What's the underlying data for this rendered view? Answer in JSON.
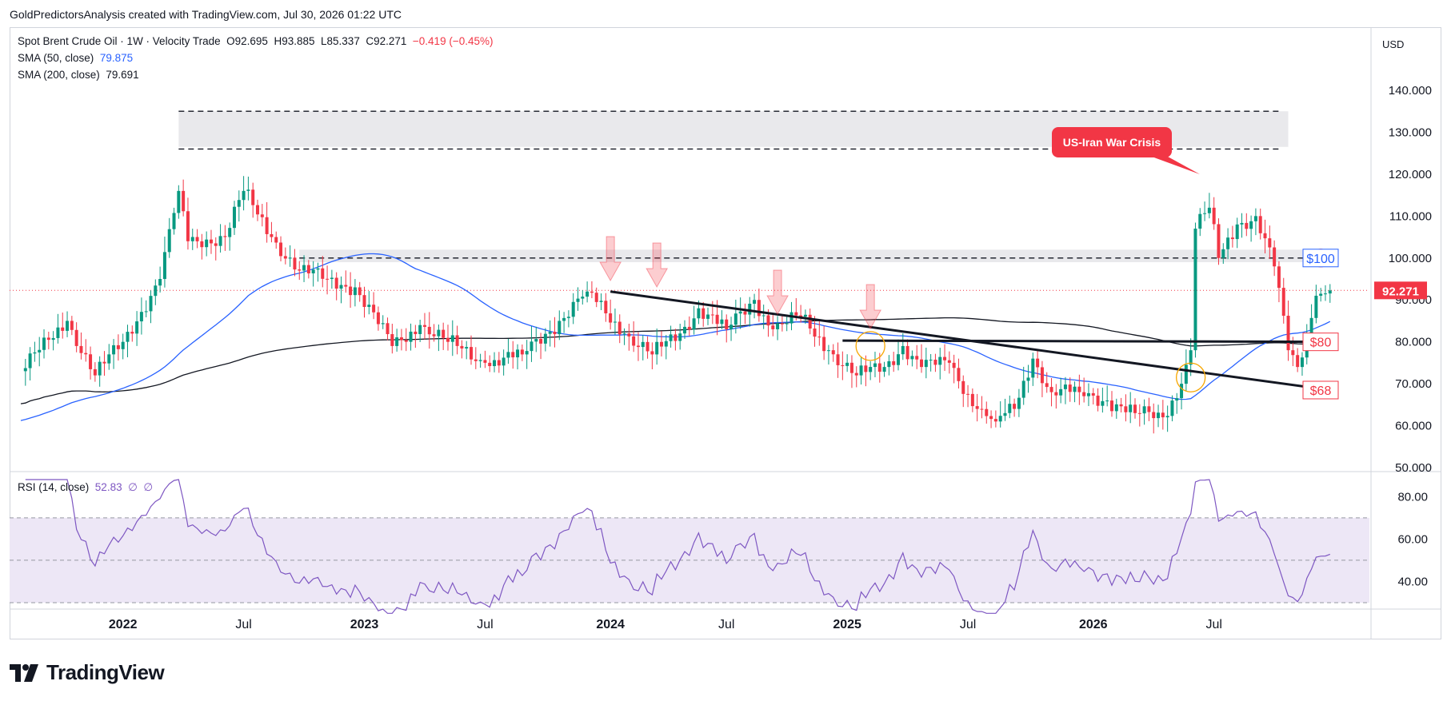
{
  "header": {
    "attribution": "GoldPredictorsAnalysis created with TradingView.com, Jul 30, 2026 01:22 UTC"
  },
  "legend": {
    "symbol": "Spot Brent Crude Oil · 1W · Velocity Trade",
    "open_label": "O",
    "open": "92.695",
    "high_label": "H",
    "high": "93.885",
    "low_label": "L",
    "low": "85.337",
    "close_label": "C",
    "close": "92.271",
    "change": "−0.419 (−0.45%)",
    "sma50_label": "SMA (50, close)",
    "sma50_value": "79.875",
    "sma200_label": "SMA (200, close)",
    "sma200_value": "79.691",
    "rsi_label": "RSI (14, close)",
    "rsi_value": "52.83",
    "rsi_extra1": "∅",
    "rsi_extra2": "∅"
  },
  "currency": "USD",
  "branding": "TradingView",
  "colors": {
    "up": "#089981",
    "down": "#f23645",
    "sma50": "#2962ff",
    "sma200": "#131722",
    "rsi": "#7e57c2",
    "rsi_band": "#ede7f6",
    "resistance_zone": "#e9e9ec",
    "annotation": "#f23645",
    "price_tag": "#f23645"
  },
  "annotations": {
    "callout": "US-Iran War Crisis",
    "level_100": "$100",
    "level_80": "$80",
    "level_68": "$68",
    "last_price": "92.271"
  },
  "chart_data": [
    {
      "type": "candlestick",
      "title": "Spot Brent Crude Oil · 1W · Velocity Trade",
      "interval": "1W",
      "ylim": [
        50,
        140
      ],
      "y_ticks": [
        "50.000",
        "60.000",
        "70.000",
        "80.000",
        "90.000",
        "100.000",
        "110.000",
        "120.000",
        "130.000",
        "140.000"
      ],
      "x_ticks": [
        "2022",
        "Jul",
        "2023",
        "Jul",
        "2024",
        "Jul",
        "2025",
        "Jul",
        "2026",
        "Jul"
      ],
      "anchors": [
        {
          "week": 0,
          "close": 73.0
        },
        {
          "week": 10,
          "close": 85.0
        },
        {
          "week": 16,
          "close": 72.0
        },
        {
          "week": 22,
          "close": 80.0
        },
        {
          "week": 30,
          "close": 95.0
        },
        {
          "week": 34,
          "close": 116.0
        },
        {
          "week": 36,
          "close": 104.0
        },
        {
          "week": 44,
          "close": 105.0
        },
        {
          "week": 48,
          "close": 116.0
        },
        {
          "week": 54,
          "close": 105.0
        },
        {
          "week": 60,
          "close": 97.0
        },
        {
          "week": 66,
          "close": 95.0
        },
        {
          "week": 72,
          "close": 93.0
        },
        {
          "week": 80,
          "close": 79.0
        },
        {
          "week": 86,
          "close": 84.0
        },
        {
          "week": 92,
          "close": 80.0
        },
        {
          "week": 100,
          "close": 75.0
        },
        {
          "week": 108,
          "close": 77.0
        },
        {
          "week": 116,
          "close": 85.0
        },
        {
          "week": 122,
          "close": 92.0
        },
        {
          "week": 130,
          "close": 82.0
        },
        {
          "week": 136,
          "close": 77.0
        },
        {
          "week": 142,
          "close": 82.0
        },
        {
          "week": 146,
          "close": 88.0
        },
        {
          "week": 152,
          "close": 83.0
        },
        {
          "week": 158,
          "close": 90.0
        },
        {
          "week": 162,
          "close": 83.0
        },
        {
          "week": 168,
          "close": 86.0
        },
        {
          "week": 174,
          "close": 78.0
        },
        {
          "week": 180,
          "close": 72.0
        },
        {
          "week": 186,
          "close": 74.0
        },
        {
          "week": 190,
          "close": 79.0
        },
        {
          "week": 194,
          "close": 74.0
        },
        {
          "week": 200,
          "close": 75.0
        },
        {
          "week": 206,
          "close": 64.0
        },
        {
          "week": 210,
          "close": 61.0
        },
        {
          "week": 214,
          "close": 64.0
        },
        {
          "week": 218,
          "close": 76.0
        },
        {
          "week": 222,
          "close": 68.0
        },
        {
          "week": 228,
          "close": 68.0
        },
        {
          "week": 234,
          "close": 66.0
        },
        {
          "week": 240,
          "close": 63.0
        },
        {
          "week": 246,
          "close": 62.0
        },
        {
          "week": 250,
          "close": 70.0
        },
        {
          "week": 252,
          "close": 78.0
        },
        {
          "week": 253,
          "close": 107.0
        },
        {
          "week": 256,
          "close": 112.0
        },
        {
          "week": 258,
          "close": 100.0
        },
        {
          "week": 262,
          "close": 108.0
        },
        {
          "week": 266,
          "close": 110.0
        },
        {
          "week": 270,
          "close": 98.0
        },
        {
          "week": 273,
          "close": 78.0
        },
        {
          "week": 275,
          "close": 74.0
        },
        {
          "week": 277,
          "close": 82.0
        },
        {
          "week": 279,
          "close": 91.0
        },
        {
          "week": 282,
          "close": 92.271
        }
      ]
    },
    {
      "type": "line",
      "title": "RSI (14, close)",
      "ylim": [
        30,
        90
      ],
      "y_ticks": [
        "40.00",
        "60.00",
        "80.00"
      ],
      "levels": [
        30,
        50,
        70
      ],
      "last": 52.83
    }
  ]
}
